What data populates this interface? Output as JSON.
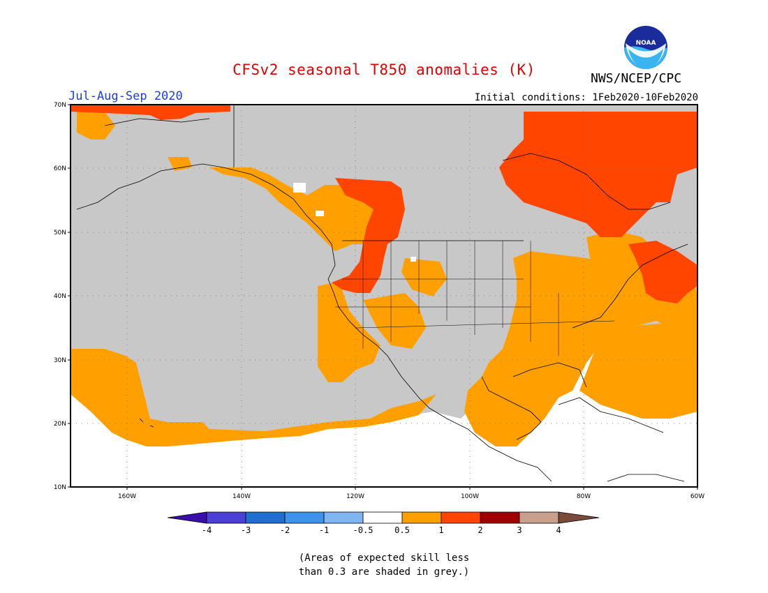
{
  "title": "CFSv2 seasonal T850 anomalies (K)",
  "agency": "NWS/NCEP/CPC",
  "logo_text": "NOAA",
  "season": "Jul-Aug-Sep 2020",
  "initial_conditions": "Initial conditions: 1Feb2020-10Feb2020",
  "lat_labels": [
    "70N",
    "60N",
    "50N",
    "40N",
    "30N",
    "20N",
    "10N"
  ],
  "lon_labels": [
    "160W",
    "140W",
    "120W",
    "100W",
    "80W",
    "60W"
  ],
  "colorbar": {
    "labels": [
      "-4",
      "-3",
      "-2",
      "-1",
      "-0.5",
      "0.5",
      "1",
      "2",
      "3",
      "4"
    ],
    "colors": [
      "#3a0ea8",
      "#4b3fd6",
      "#1e6fd0",
      "#3d92ec",
      "#7fb6f2",
      "#ffffff",
      "#ffa000",
      "#ff4500",
      "#a00000",
      "#c8a08c",
      "#7a4a3a"
    ]
  },
  "colors": {
    "title": "#e00000",
    "season": "#1a3cf0",
    "skill_grey": "#c8c8c8",
    "anom_05_1": "#ffa000",
    "anom_1_2": "#ff4500"
  },
  "note_line1": "(Areas of expected skill less",
  "note_line2": "than 0.3 are shaded in grey.)"
}
